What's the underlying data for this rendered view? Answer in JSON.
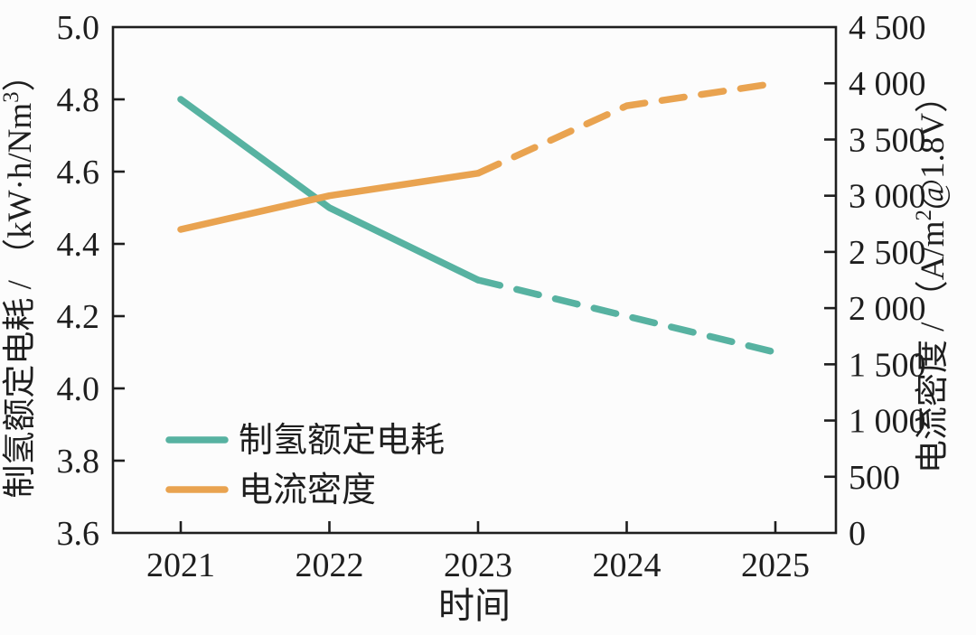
{
  "figure": {
    "background": "#fcfcfc",
    "axis_color": "#1e1e1e"
  },
  "chart_data": {
    "type": "line",
    "title": "",
    "grid": false,
    "x": [
      2021,
      2022,
      2023,
      2024,
      2025
    ],
    "x_tick_labels": [
      "2021",
      "2022",
      "2023",
      "2024",
      "2025"
    ],
    "xlabel": "时间",
    "axes": {
      "left": {
        "label_plain": "制氢额定电耗 / （kW·h/Nm³）",
        "label_parts": [
          {
            "t": "制氢额定电耗 / （kW·h/Nm"
          },
          {
            "t": "3",
            "sup": true
          },
          {
            "t": "）"
          }
        ],
        "min": 3.6,
        "max": 5.0,
        "tick_step": 0.2,
        "ticks": [
          {
            "v": 5.0,
            "label": "5.0"
          },
          {
            "v": 4.8,
            "label": "4.8"
          },
          {
            "v": 4.6,
            "label": "4.6"
          },
          {
            "v": 4.4,
            "label": "4.4"
          },
          {
            "v": 4.2,
            "label": "4.2"
          },
          {
            "v": 4.0,
            "label": "4.0"
          },
          {
            "v": 3.8,
            "label": "3.8"
          },
          {
            "v": 3.6,
            "label": "3.6"
          }
        ]
      },
      "right": {
        "label_plain": "电流密度 / （A/m²@1.8V）",
        "label_parts": [
          {
            "t": "电流密度 / （A/m"
          },
          {
            "t": "2",
            "sup": true
          },
          {
            "t": "@1.8V）"
          }
        ],
        "min": 0,
        "max": 4500,
        "tick_step": 500,
        "ticks": [
          {
            "v": 4500,
            "label": "4 500"
          },
          {
            "v": 4000,
            "label": "4 000"
          },
          {
            "v": 3500,
            "label": "3 500"
          },
          {
            "v": 3000,
            "label": "3 000"
          },
          {
            "v": 2500,
            "label": "2 500"
          },
          {
            "v": 2000,
            "label": "2 000"
          },
          {
            "v": 1500,
            "label": "1 500"
          },
          {
            "v": 1000,
            "label": "1 000"
          },
          {
            "v": 500,
            "label": "500"
          },
          {
            "v": 0,
            "label": "0"
          }
        ]
      }
    },
    "series": [
      {
        "name": "制氢额定电耗",
        "axis": "left",
        "color": "#57B2A1",
        "values": [
          4.8,
          4.5,
          4.3,
          4.2,
          4.1
        ],
        "solid_until_x": 2023,
        "dashed_after": true
      },
      {
        "name": "电流密度",
        "axis": "right",
        "color": "#E9A350",
        "values": [
          2700,
          3000,
          3200,
          3800,
          4000
        ],
        "solid_until_x": 2023,
        "dashed_after": true
      }
    ],
    "legend": {
      "position": "lower-left-inside",
      "entries": [
        "制氢额定电耗",
        "电流密度"
      ]
    }
  }
}
